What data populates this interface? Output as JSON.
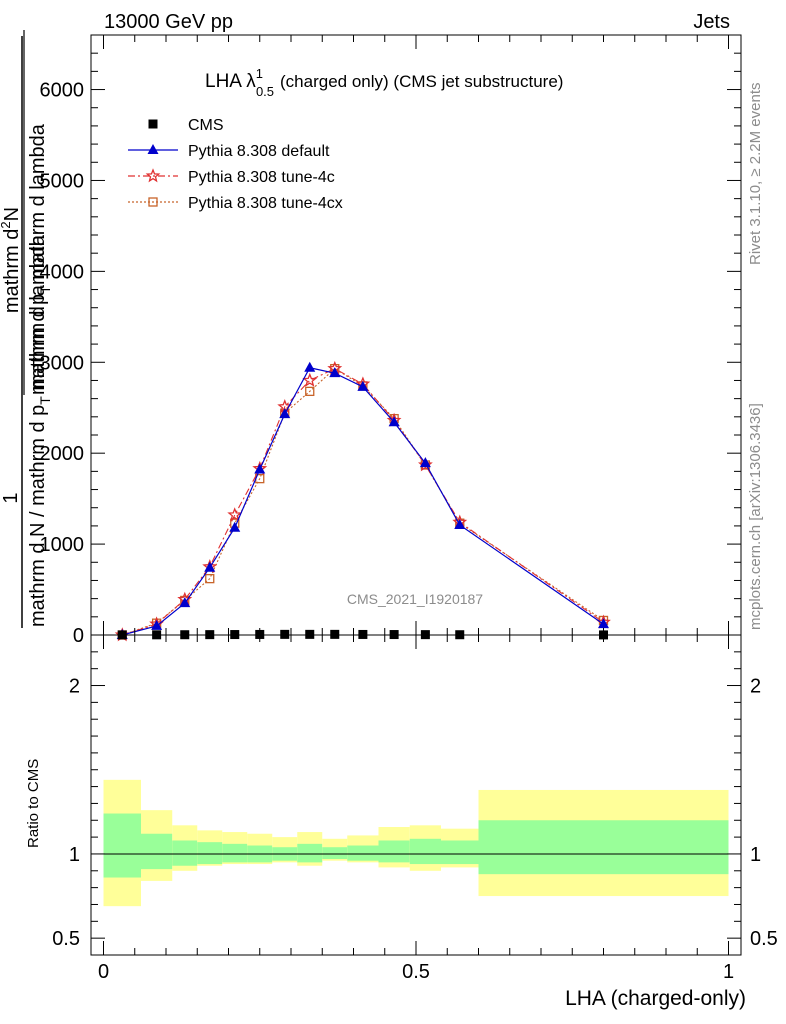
{
  "header": {
    "left": "13000 GeV pp",
    "right": "Jets"
  },
  "side": {
    "rivet": "Rivet 3.1.10, ≥ 2.2M events",
    "mcplots": "mcplots.cern.ch [arXiv:1306.3436]"
  },
  "watermark": "CMS_2021_I1920187",
  "ratio_ylabel": "Ratio to CMS",
  "colors": {
    "cms": "#000000",
    "default": "#0000cc",
    "tune4c": "#e03030",
    "tune4cx": "#c8642a",
    "band_inner": "#99ff99",
    "band_outer": "#ffff99"
  },
  "chart_data": {
    "type": "line",
    "title_main": "LHA λ",
    "title_sup": "1",
    "title_sub": "0.5",
    "title_rest": "(charged only) (CMS jet substructure)",
    "xlabel": "LHA (charged-only)",
    "ylabel_num": "1",
    "ylabel_den": "mathrm d N / mathrm d p",
    "ylabel_den_sub": "T",
    "ylabel_den_rest": " mathrm d lambda",
    "ylabel_top": "mathrm d",
    "ylabel_top_sup": "2",
    "ylabel_top_rest": "N",
    "ylabel_mid": "mathrm d p",
    "ylabel_mid_sub": "T",
    "ylabel_mid_rest": " mathrm d lambda",
    "xlim": [
      -0.02,
      1.02
    ],
    "ylim": [
      0,
      6600
    ],
    "xticks": [
      "0",
      "0.5",
      "1"
    ],
    "yticks": [
      "0",
      "1000",
      "2000",
      "3000",
      "4000",
      "5000",
      "6000"
    ],
    "edges": [
      0,
      0.06,
      0.11,
      0.15,
      0.19,
      0.23,
      0.27,
      0.31,
      0.35,
      0.39,
      0.44,
      0.49,
      0.54,
      0.6,
      1.0
    ],
    "x": [
      0.03,
      0.085,
      0.13,
      0.17,
      0.21,
      0.25,
      0.29,
      0.33,
      0.37,
      0.415,
      0.465,
      0.515,
      0.57,
      0.8
    ],
    "legend": [
      {
        "key": "cms",
        "label": "CMS"
      },
      {
        "key": "default",
        "label": "Pythia 8.308 default"
      },
      {
        "key": "tune4c",
        "label": "Pythia 8.308 tune-4c"
      },
      {
        "key": "tune4cx",
        "label": "Pythia 8.308 tune-4cx"
      }
    ],
    "series": [
      {
        "key": "cms",
        "name": "CMS",
        "values": [
          1,
          2,
          3,
          4,
          5,
          6,
          7,
          7,
          7,
          6,
          5,
          4,
          3,
          1
        ]
      },
      {
        "key": "default",
        "name": "Pythia 8.308 default",
        "values": [
          0,
          100,
          350,
          740,
          1180,
          1820,
          2430,
          2940,
          2880,
          2730,
          2340,
          1890,
          1210,
          120
        ]
      },
      {
        "key": "tune4c",
        "name": "Pythia 8.308 tune-4c",
        "values": [
          0,
          120,
          390,
          750,
          1320,
          1830,
          2510,
          2800,
          2930,
          2760,
          2360,
          1870,
          1240,
          140
        ]
      },
      {
        "key": "tune4cx",
        "name": "Pythia 8.308 tune-4cx",
        "values": [
          0,
          130,
          380,
          620,
          1230,
          1720,
          2440,
          2680,
          2930,
          2740,
          2380,
          1870,
          1230,
          160
        ]
      }
    ],
    "ratio": {
      "ylim": [
        0.4,
        2.3
      ],
      "yticks": [
        "0.5",
        "1",
        "2"
      ],
      "inner_up": [
        1.24,
        1.12,
        1.08,
        1.07,
        1.06,
        1.05,
        1.04,
        1.06,
        1.04,
        1.05,
        1.08,
        1.09,
        1.08,
        1.2
      ],
      "inner_down": [
        0.86,
        0.91,
        0.93,
        0.94,
        0.95,
        0.95,
        0.96,
        0.95,
        0.97,
        0.96,
        0.95,
        0.94,
        0.94,
        0.88
      ],
      "outer_up": [
        1.44,
        1.26,
        1.17,
        1.14,
        1.13,
        1.12,
        1.1,
        1.13,
        1.09,
        1.11,
        1.16,
        1.17,
        1.15,
        1.38
      ],
      "outer_down": [
        0.69,
        0.84,
        0.9,
        0.93,
        0.94,
        0.94,
        0.95,
        0.93,
        0.96,
        0.95,
        0.92,
        0.9,
        0.92,
        0.75
      ]
    }
  }
}
